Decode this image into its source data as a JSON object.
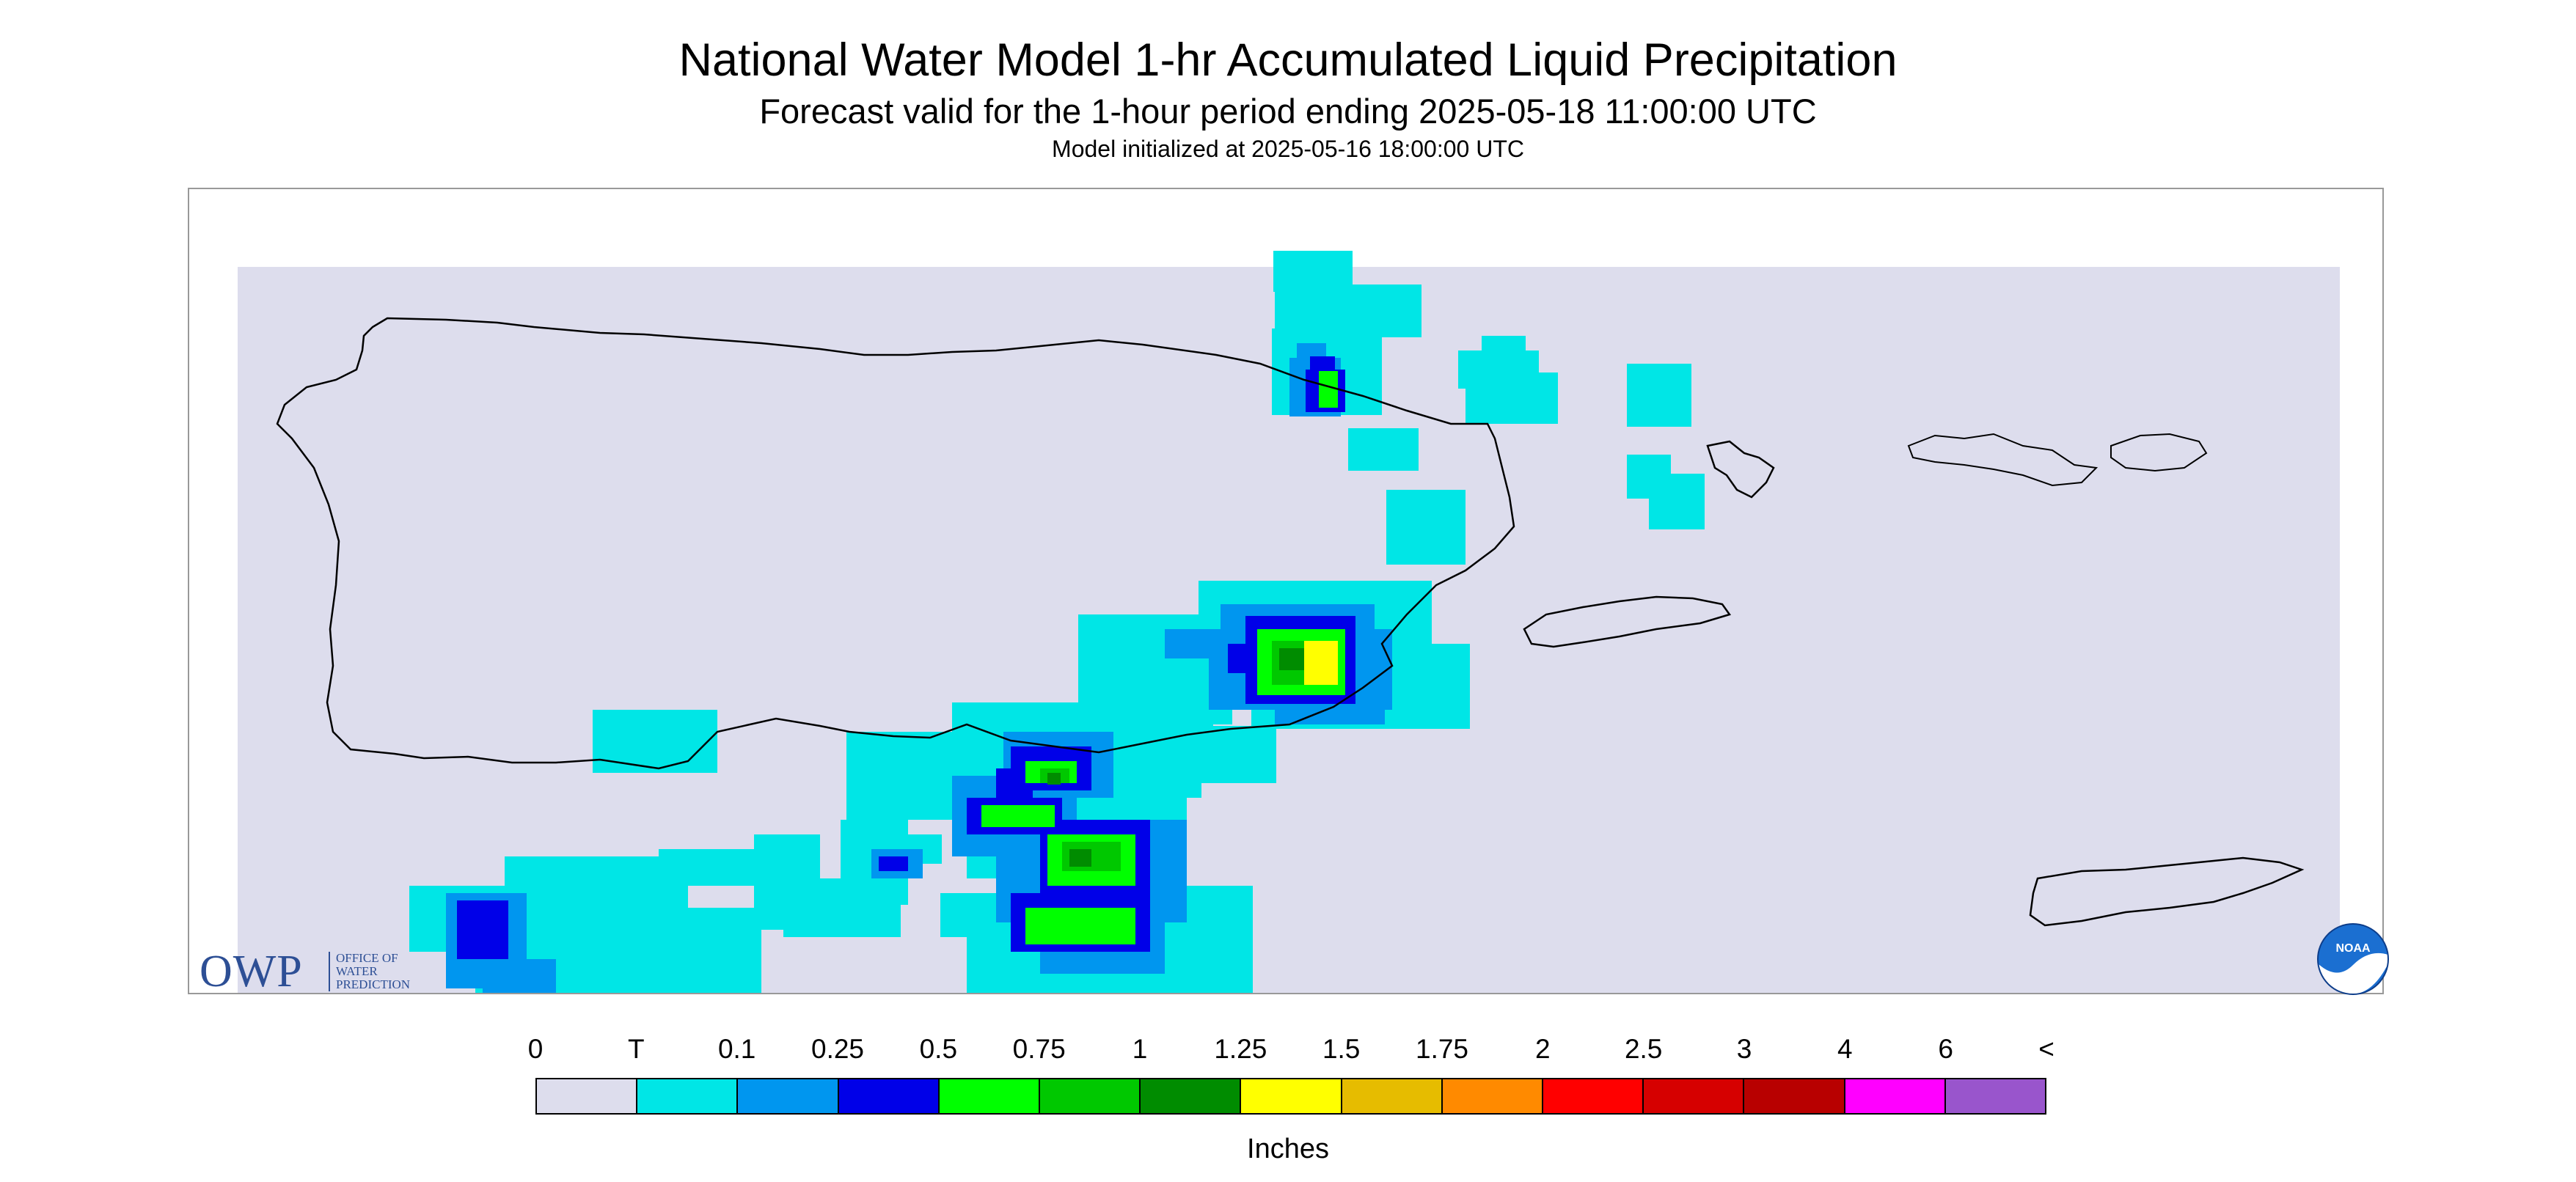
{
  "title": "National Water Model 1-hr Accumulated Liquid Precipitation",
  "subtitle": "Forecast valid for the 1-hour period ending 2025-05-18 11:00:00 UTC",
  "init_line": "Model initialized at 2025-05-16 18:00:00 UTC",
  "logos": {
    "owp_letters": "OWP",
    "owp_sub": [
      "Office of",
      "Water",
      "Prediction"
    ],
    "noaa_text": "NOAA"
  },
  "legend": {
    "units": "Inches",
    "labels": [
      "0",
      "T",
      "0.1",
      "0.25",
      "0.5",
      "0.75",
      "1",
      "1.25",
      "1.5",
      "1.75",
      "2",
      "2.5",
      "3",
      "4",
      "6",
      "<"
    ],
    "colors": [
      "#dddded",
      "#00e6e6",
      "#0096ef",
      "#0000e8",
      "#00ff00",
      "#00c800",
      "#008c00",
      "#ffff00",
      "#e6bc00",
      "#ff8a00",
      "#ff0000",
      "#d60000",
      "#b80000",
      "#ff00ff",
      "#9955cc"
    ]
  },
  "map": {
    "background_color": "#dddded",
    "coast_color": "#000000",
    "region": "Puerto Rico and U.S. Virgin Islands"
  }
}
